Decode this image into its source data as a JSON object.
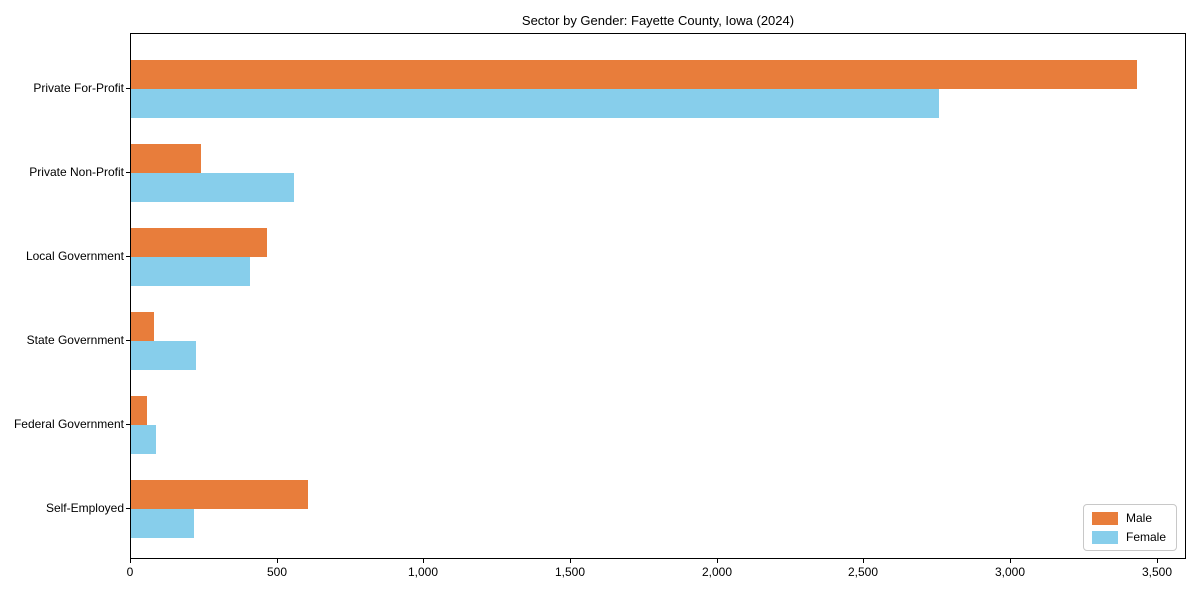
{
  "chart_data": {
    "type": "bar",
    "orientation": "horizontal",
    "title": "Sector by Gender: Fayette County, Iowa (2024)",
    "categories": [
      "Private For-Profit",
      "Private Non-Profit",
      "Local Government",
      "State Government",
      "Federal Government",
      "Self-Employed"
    ],
    "series": [
      {
        "name": "Male",
        "color": "#e87d3b",
        "values": [
          3430,
          240,
          465,
          80,
          55,
          605
        ]
      },
      {
        "name": "Female",
        "color": "#87ceeb",
        "values": [
          2755,
          555,
          405,
          220,
          85,
          215
        ]
      }
    ],
    "xlabel": "",
    "ylabel": "",
    "xlim": [
      0,
      3600
    ],
    "xticks": [
      0,
      500,
      1000,
      1500,
      2000,
      2500,
      3000,
      3500
    ],
    "xtick_labels": [
      "0",
      "500",
      "1,000",
      "1,500",
      "2,000",
      "2,500",
      "3,000",
      "3,500"
    ],
    "grid": false,
    "legend": {
      "position": "lower right",
      "entries": [
        "Male",
        "Female"
      ]
    },
    "frame_color": "#000000",
    "background_color": "#ffffff"
  }
}
